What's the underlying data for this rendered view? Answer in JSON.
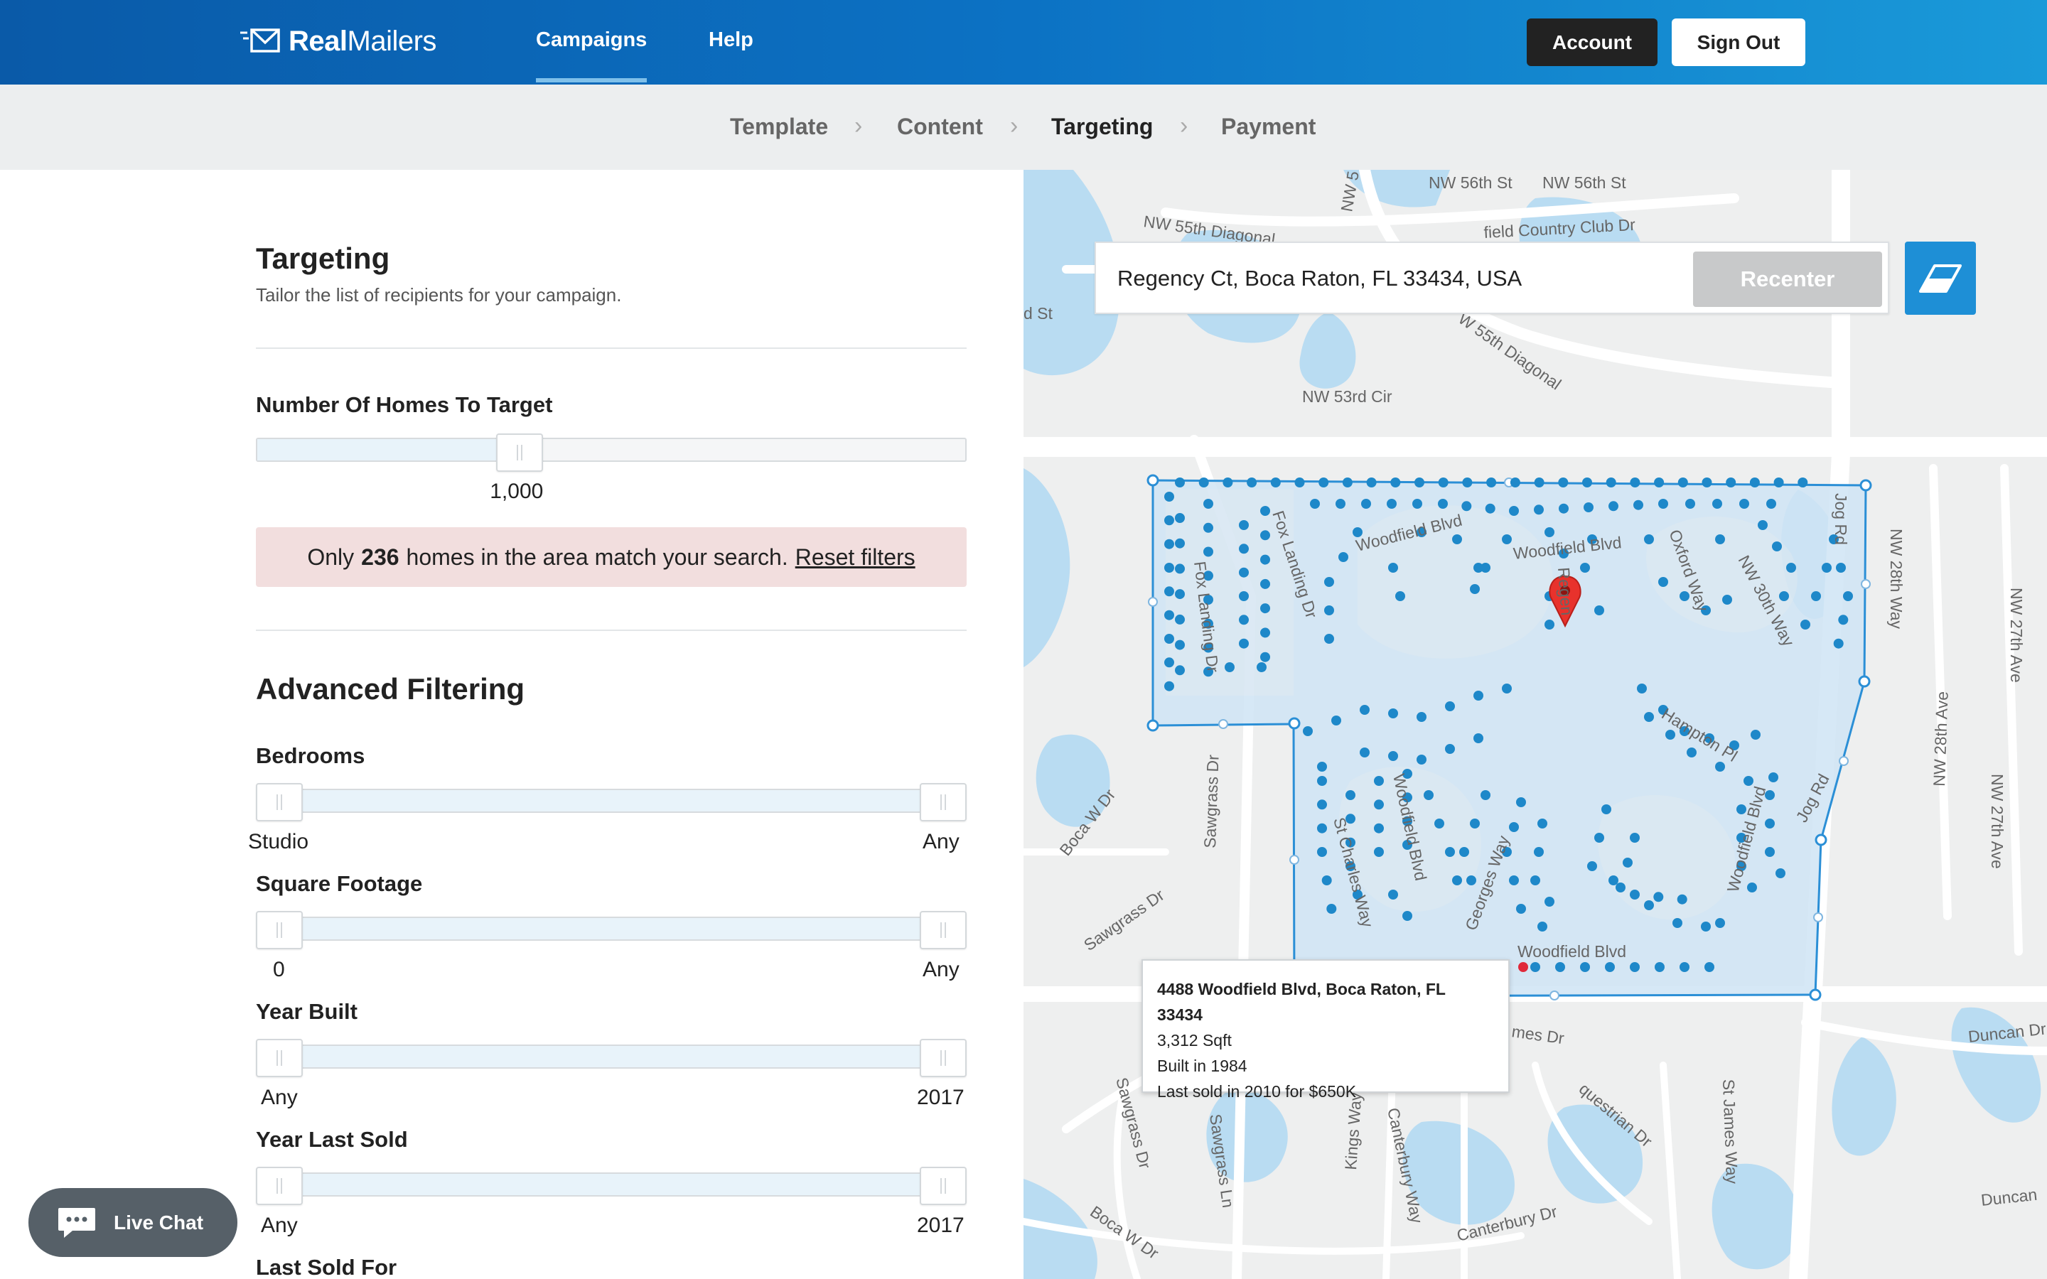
{
  "header": {
    "logo_bold": "Real",
    "logo_light": "Mailers",
    "nav": [
      "Campaigns",
      "Help"
    ],
    "account_label": "Account",
    "signout_label": "Sign Out"
  },
  "steps": [
    "Template",
    "Content",
    "Targeting",
    "Payment"
  ],
  "targeting": {
    "title": "Targeting",
    "subtitle": "Tailor the list of recipients for your campaign.",
    "homes_label": "Number Of Homes To Target",
    "homes_value": "1,000",
    "homes_fraction": 0.36,
    "alert_prefix": "Only",
    "alert_count": "236",
    "alert_suffix": "homes in the area match your search.",
    "alert_link": "Reset filters"
  },
  "advanced": {
    "title": "Advanced Filtering",
    "filters": [
      {
        "label": "Bedrooms",
        "min": "Studio",
        "max": "Any"
      },
      {
        "label": "Square Footage",
        "min": "0",
        "max": "Any"
      },
      {
        "label": "Year Built",
        "min": "Any",
        "max": "2017"
      },
      {
        "label": "Year Last Sold",
        "min": "Any",
        "max": "2017"
      },
      {
        "label": "Last Sold For"
      }
    ]
  },
  "livechat_label": "Live Chat",
  "map": {
    "search_value": "Regency Ct, Boca Raton, FL 33434, USA",
    "recenter_label": "Recenter",
    "tooltip": {
      "address": "4488 Woodfield Blvd, Boca Raton, FL 33434",
      "sqft": "3,312 Sqft",
      "built": "Built in 1984",
      "sold": "Last sold in 2010 for $650K"
    },
    "streets": {
      "nw56a": "NW 56th St",
      "nw56b": "NW 56th St",
      "nw55diag": "NW 55th Diagonal",
      "nw55diag2": "W 55th Diagonal",
      "country": "field Country Club Dr",
      "nw53": "NW 53rd Cir",
      "dst": "d St",
      "nw5": "NW 5",
      "jog1": "Jog Rd",
      "jog2": "Jog Rd",
      "nw28a": "NW 28th Way",
      "nw28b": "NW 28th Ave",
      "nw27a": "NW 27th Ave",
      "nw27b": "NW 27th Ave",
      "woodfield1": "Woodfield Blvd",
      "woodfield2": "Woodfield Blvd",
      "woodfield3": "Woodfield Blvd",
      "woodfield4": "Woodfield Blvd",
      "woodfield5": "Woodfield Blvd",
      "foxland1": "Fox Landing Dr",
      "foxland2": "Fox Landing Dr",
      "oxford": "Oxford Way",
      "nw30": "NW 30th Way",
      "regency": "Regen",
      "hampton": "Hampton Pl",
      "stcharles": "St Charles Way",
      "georges": "Georges Way",
      "sawgrass1": "Sawgrass Dr",
      "sawgrass2": "Sawgrass Dr",
      "sawgrass3": "Sawgrass Dr",
      "sawgrassln": "Sawgrass Ln",
      "bocaw1": "Boca W Dr",
      "bocaw2": "Boca W Dr",
      "james": "mes Dr",
      "equestrian": "questrian Dr",
      "kings": "Kings Way",
      "canterburyway": "Canterbury Way",
      "canterburydr": "Canterbury Dr",
      "stjames": "St James Way",
      "duncan1": "Duncan Dr",
      "duncan2": "Duncan"
    },
    "colors": {
      "accent": "#1e8fd6",
      "dot": "#1e88c9",
      "selected": "#e0293a",
      "zone": "#cfe4f5"
    }
  }
}
